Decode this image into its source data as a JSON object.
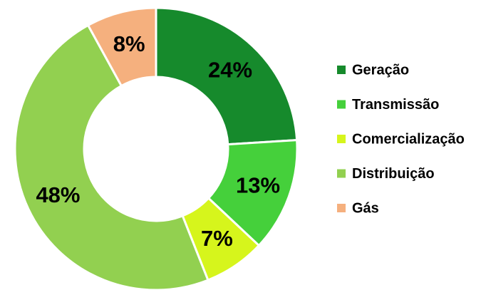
{
  "chart_data": {
    "type": "donut",
    "categories": [
      "Geração",
      "Transmissão",
      "Comercialização",
      "Distribuição",
      "Gás"
    ],
    "values": [
      24,
      13,
      7,
      48,
      8
    ],
    "value_labels": [
      "24%",
      "13%",
      "7%",
      "48%",
      "8%"
    ],
    "colors": [
      "#168a2c",
      "#45d03b",
      "#d6f51c",
      "#92d050",
      "#f5b07e"
    ],
    "legend": "right"
  }
}
